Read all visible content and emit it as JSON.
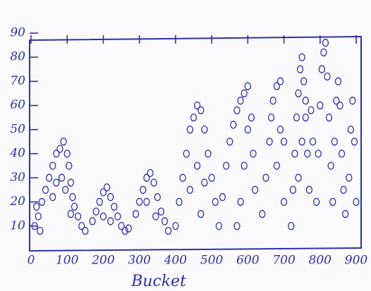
{
  "chart_data": {
    "type": "scatter",
    "x_label": "Bucket",
    "color": "#2f2fa8",
    "xlim": [
      0,
      900
    ],
    "xticks": [
      0,
      100,
      200,
      300,
      400,
      500,
      600,
      700,
      800,
      900
    ],
    "ylim": [
      0,
      90
    ],
    "yticks": [
      10,
      20,
      30,
      40,
      50,
      60,
      70,
      80,
      90
    ],
    "x": [
      10,
      15,
      20,
      25,
      30,
      40,
      50,
      60,
      70,
      80,
      90,
      100,
      105,
      110,
      115,
      120,
      130,
      140,
      150,
      60,
      70,
      85,
      95,
      110,
      170,
      180,
      190,
      200,
      210,
      220,
      230,
      240,
      250,
      260,
      270,
      200,
      220,
      290,
      300,
      310,
      320,
      330,
      340,
      350,
      360,
      370,
      380,
      320,
      345,
      400,
      410,
      420,
      430,
      440,
      450,
      460,
      470,
      480,
      490,
      500,
      510,
      440,
      460,
      480,
      470,
      520,
      530,
      540,
      550,
      560,
      570,
      580,
      590,
      600,
      600,
      590,
      580,
      570,
      610,
      615,
      620,
      640,
      650,
      660,
      665,
      670,
      680,
      690,
      690,
      680,
      700,
      700,
      720,
      725,
      730,
      735,
      740,
      745,
      750,
      755,
      760,
      765,
      770,
      740,
      750,
      760,
      775,
      780,
      790,
      795,
      800,
      805,
      810,
      815,
      820,
      825,
      830,
      835,
      840,
      845,
      850,
      855,
      860,
      865,
      870,
      880,
      885,
      890,
      895,
      900
    ],
    "values": [
      10,
      18,
      14,
      8,
      20,
      25,
      30,
      35,
      40,
      42,
      45,
      40,
      35,
      28,
      22,
      18,
      14,
      10,
      8,
      22,
      28,
      30,
      25,
      15,
      12,
      16,
      20,
      24,
      26,
      22,
      18,
      14,
      10,
      8,
      9,
      14,
      12,
      15,
      20,
      25,
      30,
      32,
      28,
      22,
      16,
      12,
      8,
      20,
      14,
      10,
      20,
      30,
      40,
      50,
      55,
      60,
      58,
      50,
      40,
      30,
      20,
      25,
      35,
      28,
      15,
      10,
      22,
      35,
      45,
      52,
      58,
      62,
      65,
      68,
      50,
      35,
      20,
      10,
      55,
      40,
      25,
      15,
      30,
      45,
      55,
      62,
      68,
      70,
      50,
      35,
      20,
      45,
      10,
      25,
      40,
      55,
      65,
      75,
      80,
      70,
      55,
      40,
      25,
      30,
      45,
      62,
      58,
      45,
      20,
      40,
      60,
      75,
      82,
      86,
      72,
      55,
      35,
      20,
      45,
      62,
      70,
      60,
      40,
      25,
      15,
      30,
      50,
      62,
      45,
      20
    ]
  }
}
